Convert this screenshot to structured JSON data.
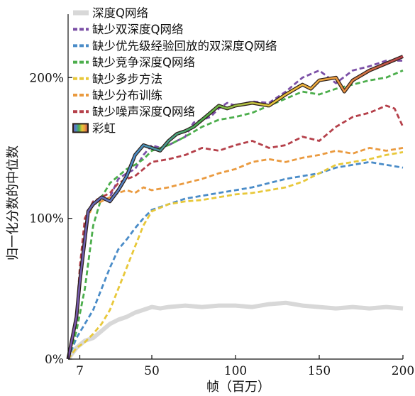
{
  "chart_data": {
    "type": "line",
    "xlabel": "帧（百万）",
    "ylabel": "归一化分数的中位数",
    "xlim": [
      0,
      200
    ],
    "ylim": [
      0,
      245
    ],
    "xticks": [
      7,
      50,
      100,
      150,
      200
    ],
    "xtick_labels": [
      "7",
      "50",
      "100",
      "150",
      "200"
    ],
    "yticks": [
      0,
      100,
      200
    ],
    "ytick_labels": [
      "0%",
      "100%",
      "200%"
    ],
    "grid": false,
    "legend_position": "top-left",
    "series": [
      {
        "name": "深度Q网络",
        "color": "#d8d8d8",
        "style": "solid",
        "x": [
          0,
          5,
          10,
          15,
          20,
          25,
          30,
          35,
          40,
          45,
          50,
          55,
          60,
          70,
          80,
          90,
          100,
          110,
          120,
          130,
          140,
          150,
          160,
          170,
          180,
          190,
          200
        ],
        "values": [
          0,
          8,
          13,
          15,
          20,
          25,
          28,
          30,
          33,
          35,
          37,
          36,
          37,
          38,
          37,
          38,
          38,
          37,
          39,
          40,
          38,
          37,
          36,
          37,
          36,
          37,
          36
        ]
      },
      {
        "name": "缺少双深度Q网络",
        "color": "#7b4fa6",
        "style": "dashed",
        "x": [
          0,
          5,
          7,
          10,
          12,
          15,
          20,
          25,
          30,
          35,
          40,
          45,
          50,
          55,
          60,
          65,
          70,
          75,
          80,
          85,
          90,
          95,
          100,
          110,
          120,
          130,
          140,
          150,
          160,
          170,
          180,
          190,
          200
        ],
        "values": [
          0,
          25,
          55,
          90,
          105,
          112,
          112,
          115,
          128,
          132,
          135,
          145,
          152,
          150,
          152,
          155,
          158,
          168,
          170,
          172,
          178,
          182,
          180,
          183,
          182,
          190,
          200,
          205,
          196,
          205,
          208,
          212,
          212
        ]
      },
      {
        "name": "缺少优先级经验回放的双深度Q网络",
        "color": "#4a8cc8",
        "style": "dashed",
        "x": [
          0,
          5,
          10,
          15,
          20,
          25,
          30,
          35,
          40,
          45,
          50,
          60,
          70,
          80,
          90,
          100,
          110,
          120,
          130,
          140,
          150,
          160,
          170,
          180,
          190,
          200
        ],
        "values": [
          0,
          15,
          25,
          35,
          50,
          65,
          78,
          85,
          93,
          100,
          106,
          110,
          114,
          116,
          118,
          120,
          122,
          125,
          128,
          130,
          132,
          136,
          138,
          140,
          138,
          136
        ]
      },
      {
        "name": "缺少竞争深度Q网络",
        "color": "#4cae4c",
        "style": "dashed",
        "x": [
          0,
          5,
          10,
          15,
          20,
          25,
          30,
          35,
          40,
          45,
          50,
          60,
          70,
          80,
          90,
          100,
          110,
          120,
          130,
          140,
          150,
          160,
          170,
          180,
          190,
          200
        ],
        "values": [
          0,
          20,
          50,
          95,
          115,
          125,
          130,
          135,
          138,
          142,
          148,
          152,
          158,
          165,
          170,
          172,
          175,
          180,
          185,
          190,
          188,
          192,
          195,
          198,
          200,
          205
        ]
      },
      {
        "name": "缺少多步方法",
        "color": "#e8c83a",
        "style": "dashed",
        "x": [
          0,
          5,
          10,
          15,
          20,
          25,
          30,
          35,
          40,
          45,
          50,
          60,
          70,
          80,
          90,
          100,
          110,
          120,
          130,
          140,
          150,
          160,
          170,
          180,
          190,
          200
        ],
        "values": [
          0,
          8,
          12,
          18,
          25,
          35,
          50,
          65,
          80,
          95,
          105,
          110,
          112,
          113,
          115,
          117,
          118,
          120,
          122,
          126,
          132,
          138,
          140,
          142,
          145,
          147
        ]
      },
      {
        "name": "缺少分布训练",
        "color": "#ea9a3f",
        "style": "dashed",
        "x": [
          0,
          5,
          7,
          10,
          15,
          20,
          25,
          30,
          35,
          40,
          45,
          50,
          60,
          70,
          80,
          90,
          100,
          110,
          120,
          130,
          140,
          150,
          160,
          170,
          180,
          190,
          200
        ],
        "values": [
          0,
          30,
          60,
          95,
          110,
          112,
          115,
          118,
          120,
          118,
          122,
          120,
          122,
          125,
          128,
          132,
          135,
          140,
          142,
          140,
          143,
          145,
          148,
          146,
          150,
          148,
          150
        ]
      },
      {
        "name": "缺少噪声深度Q网络",
        "color": "#b5404a",
        "style": "dashed",
        "x": [
          0,
          5,
          7,
          10,
          15,
          20,
          25,
          30,
          35,
          40,
          45,
          50,
          60,
          70,
          80,
          90,
          100,
          110,
          120,
          130,
          140,
          150,
          160,
          170,
          180,
          190,
          195,
          200
        ],
        "values": [
          0,
          30,
          65,
          100,
          112,
          115,
          118,
          125,
          128,
          130,
          135,
          140,
          142,
          145,
          150,
          148,
          152,
          155,
          150,
          152,
          158,
          155,
          165,
          172,
          175,
          180,
          178,
          165
        ]
      },
      {
        "name": "彩虹",
        "color": "#2a1e18",
        "style": "rainbow",
        "x": [
          0,
          5,
          7,
          10,
          12,
          15,
          20,
          25,
          30,
          35,
          40,
          45,
          50,
          55,
          60,
          65,
          70,
          75,
          80,
          85,
          90,
          95,
          100,
          110,
          120,
          130,
          140,
          145,
          150,
          160,
          165,
          170,
          180,
          190,
          200
        ],
        "values": [
          0,
          30,
          55,
          85,
          105,
          110,
          115,
          112,
          120,
          130,
          145,
          152,
          150,
          148,
          155,
          160,
          162,
          165,
          170,
          175,
          180,
          178,
          180,
          182,
          180,
          188,
          195,
          192,
          198,
          200,
          190,
          198,
          205,
          210,
          215
        ]
      }
    ]
  }
}
